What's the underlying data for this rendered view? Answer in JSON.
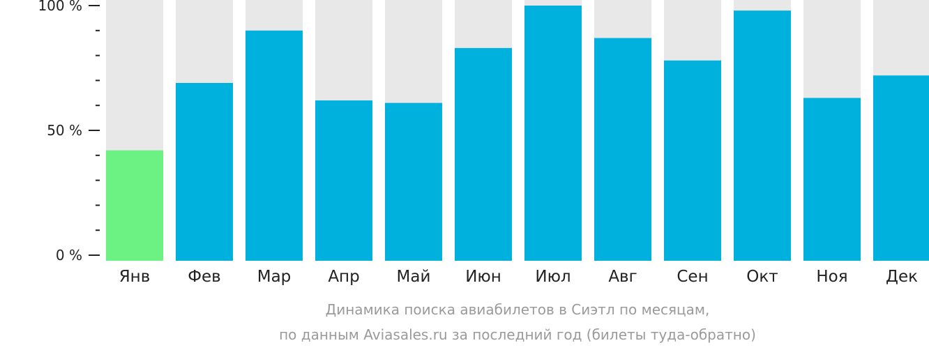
{
  "chart_data": {
    "type": "bar",
    "categories": [
      "Янв",
      "Фев",
      "Мар",
      "Апр",
      "Май",
      "Июн",
      "Июл",
      "Авг",
      "Сен",
      "Окт",
      "Ноя",
      "Дек"
    ],
    "values": [
      42,
      69,
      90,
      62,
      61,
      83,
      100,
      87,
      78,
      98,
      63,
      72
    ],
    "ylim": [
      0,
      100
    ],
    "yticks": [
      {
        "value": 0,
        "label": "0 %"
      },
      {
        "value": 50,
        "label": "50 %"
      },
      {
        "value": 100,
        "label": "100 %"
      }
    ],
    "highlight_index": 0,
    "colors": {
      "bar": "#00b0dd",
      "highlight": "#6cf283",
      "background_bar": "#e8e8e8",
      "axis": "#222222"
    }
  },
  "caption": {
    "line1": "Динамика поиска авиабилетов в Сиэтл по месяцам,",
    "line2": "по данным Aviasales.ru за последний год (билеты туда-обратно)"
  }
}
